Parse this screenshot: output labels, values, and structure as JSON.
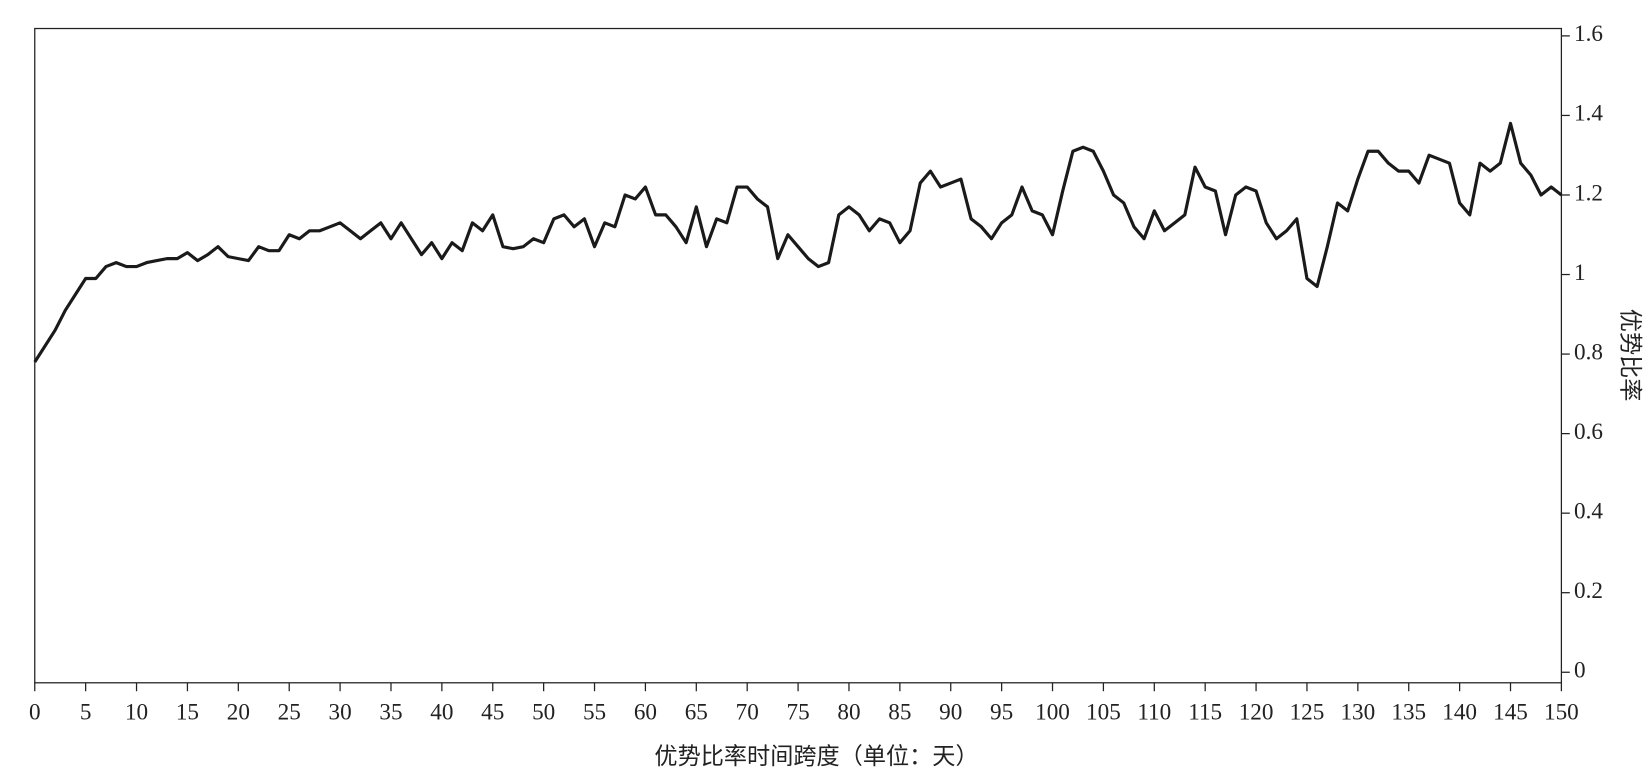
{
  "chart_data": {
    "type": "line",
    "x_label": "优势比率时间跨度（单位：天）",
    "y_label": "优势比率",
    "x": [
      0,
      1,
      2,
      3,
      4,
      5,
      6,
      7,
      8,
      9,
      10,
      11,
      12,
      13,
      14,
      15,
      16,
      17,
      18,
      19,
      20,
      21,
      22,
      23,
      24,
      25,
      26,
      27,
      28,
      29,
      30,
      31,
      32,
      33,
      34,
      35,
      36,
      37,
      38,
      39,
      40,
      41,
      42,
      43,
      44,
      45,
      46,
      47,
      48,
      49,
      50,
      51,
      52,
      53,
      54,
      55,
      56,
      57,
      58,
      59,
      60,
      61,
      62,
      63,
      64,
      65,
      66,
      67,
      68,
      69,
      70,
      71,
      72,
      73,
      74,
      75,
      76,
      77,
      78,
      79,
      80,
      81,
      82,
      83,
      84,
      85,
      86,
      87,
      88,
      89,
      90,
      91,
      92,
      93,
      94,
      95,
      96,
      97,
      98,
      99,
      100,
      101,
      102,
      103,
      104,
      105,
      106,
      107,
      108,
      109,
      110,
      111,
      112,
      113,
      114,
      115,
      116,
      117,
      118,
      119,
      120,
      121,
      122,
      123,
      124,
      125,
      126,
      127,
      128,
      129,
      130,
      131,
      132,
      133,
      134,
      135,
      136,
      137,
      138,
      139,
      140,
      141,
      142,
      143,
      144,
      145,
      146,
      147,
      148,
      149,
      150
    ],
    "series": [
      {
        "color": "#1a1a1a",
        "values": [
          0.78,
          0.82,
          0.86,
          0.91,
          0.95,
          0.99,
          0.99,
          1.02,
          1.03,
          1.02,
          1.02,
          1.03,
          1.035,
          1.04,
          1.04,
          1.055,
          1.035,
          1.05,
          1.07,
          1.045,
          1.04,
          1.035,
          1.07,
          1.06,
          1.06,
          1.1,
          1.09,
          1.11,
          1.11,
          1.12,
          1.13,
          1.11,
          1.09,
          1.11,
          1.13,
          1.09,
          1.13,
          1.09,
          1.05,
          1.08,
          1.04,
          1.08,
          1.06,
          1.13,
          1.11,
          1.15,
          1.07,
          1.065,
          1.07,
          1.09,
          1.08,
          1.14,
          1.15,
          1.12,
          1.14,
          1.07,
          1.13,
          1.12,
          1.2,
          1.19,
          1.22,
          1.15,
          1.15,
          1.12,
          1.08,
          1.17,
          1.07,
          1.14,
          1.13,
          1.22,
          1.22,
          1.19,
          1.17,
          1.04,
          1.1,
          1.07,
          1.04,
          1.02,
          1.03,
          1.15,
          1.17,
          1.15,
          1.11,
          1.14,
          1.13,
          1.08,
          1.11,
          1.23,
          1.26,
          1.22,
          1.23,
          1.24,
          1.14,
          1.12,
          1.09,
          1.13,
          1.15,
          1.22,
          1.16,
          1.15,
          1.1,
          1.21,
          1.31,
          1.32,
          1.31,
          1.26,
          1.2,
          1.18,
          1.12,
          1.09,
          1.16,
          1.11,
          1.13,
          1.15,
          1.27,
          1.22,
          1.21,
          1.1,
          1.2,
          1.22,
          1.21,
          1.13,
          1.09,
          1.11,
          1.14,
          0.99,
          0.97,
          1.07,
          1.18,
          1.16,
          1.24,
          1.31,
          1.31,
          1.28,
          1.26,
          1.26,
          1.23,
          1.3,
          1.29,
          1.28,
          1.18,
          1.15,
          1.28,
          1.26,
          1.28,
          1.38,
          1.28,
          1.25,
          1.2,
          1.22,
          1.2
        ]
      }
    ],
    "xlim": [
      0,
      150
    ],
    "xticks": [
      0,
      5,
      10,
      15,
      20,
      25,
      30,
      35,
      40,
      45,
      50,
      55,
      60,
      65,
      70,
      75,
      80,
      85,
      90,
      95,
      100,
      105,
      110,
      115,
      120,
      125,
      130,
      135,
      140,
      145,
      150
    ],
    "ylim": [
      0,
      1.6
    ],
    "yticks": [
      0,
      0.2,
      0.4,
      0.6,
      0.8,
      1.0,
      1.2,
      1.4,
      1.6
    ],
    "y_axis_side": "right"
  }
}
